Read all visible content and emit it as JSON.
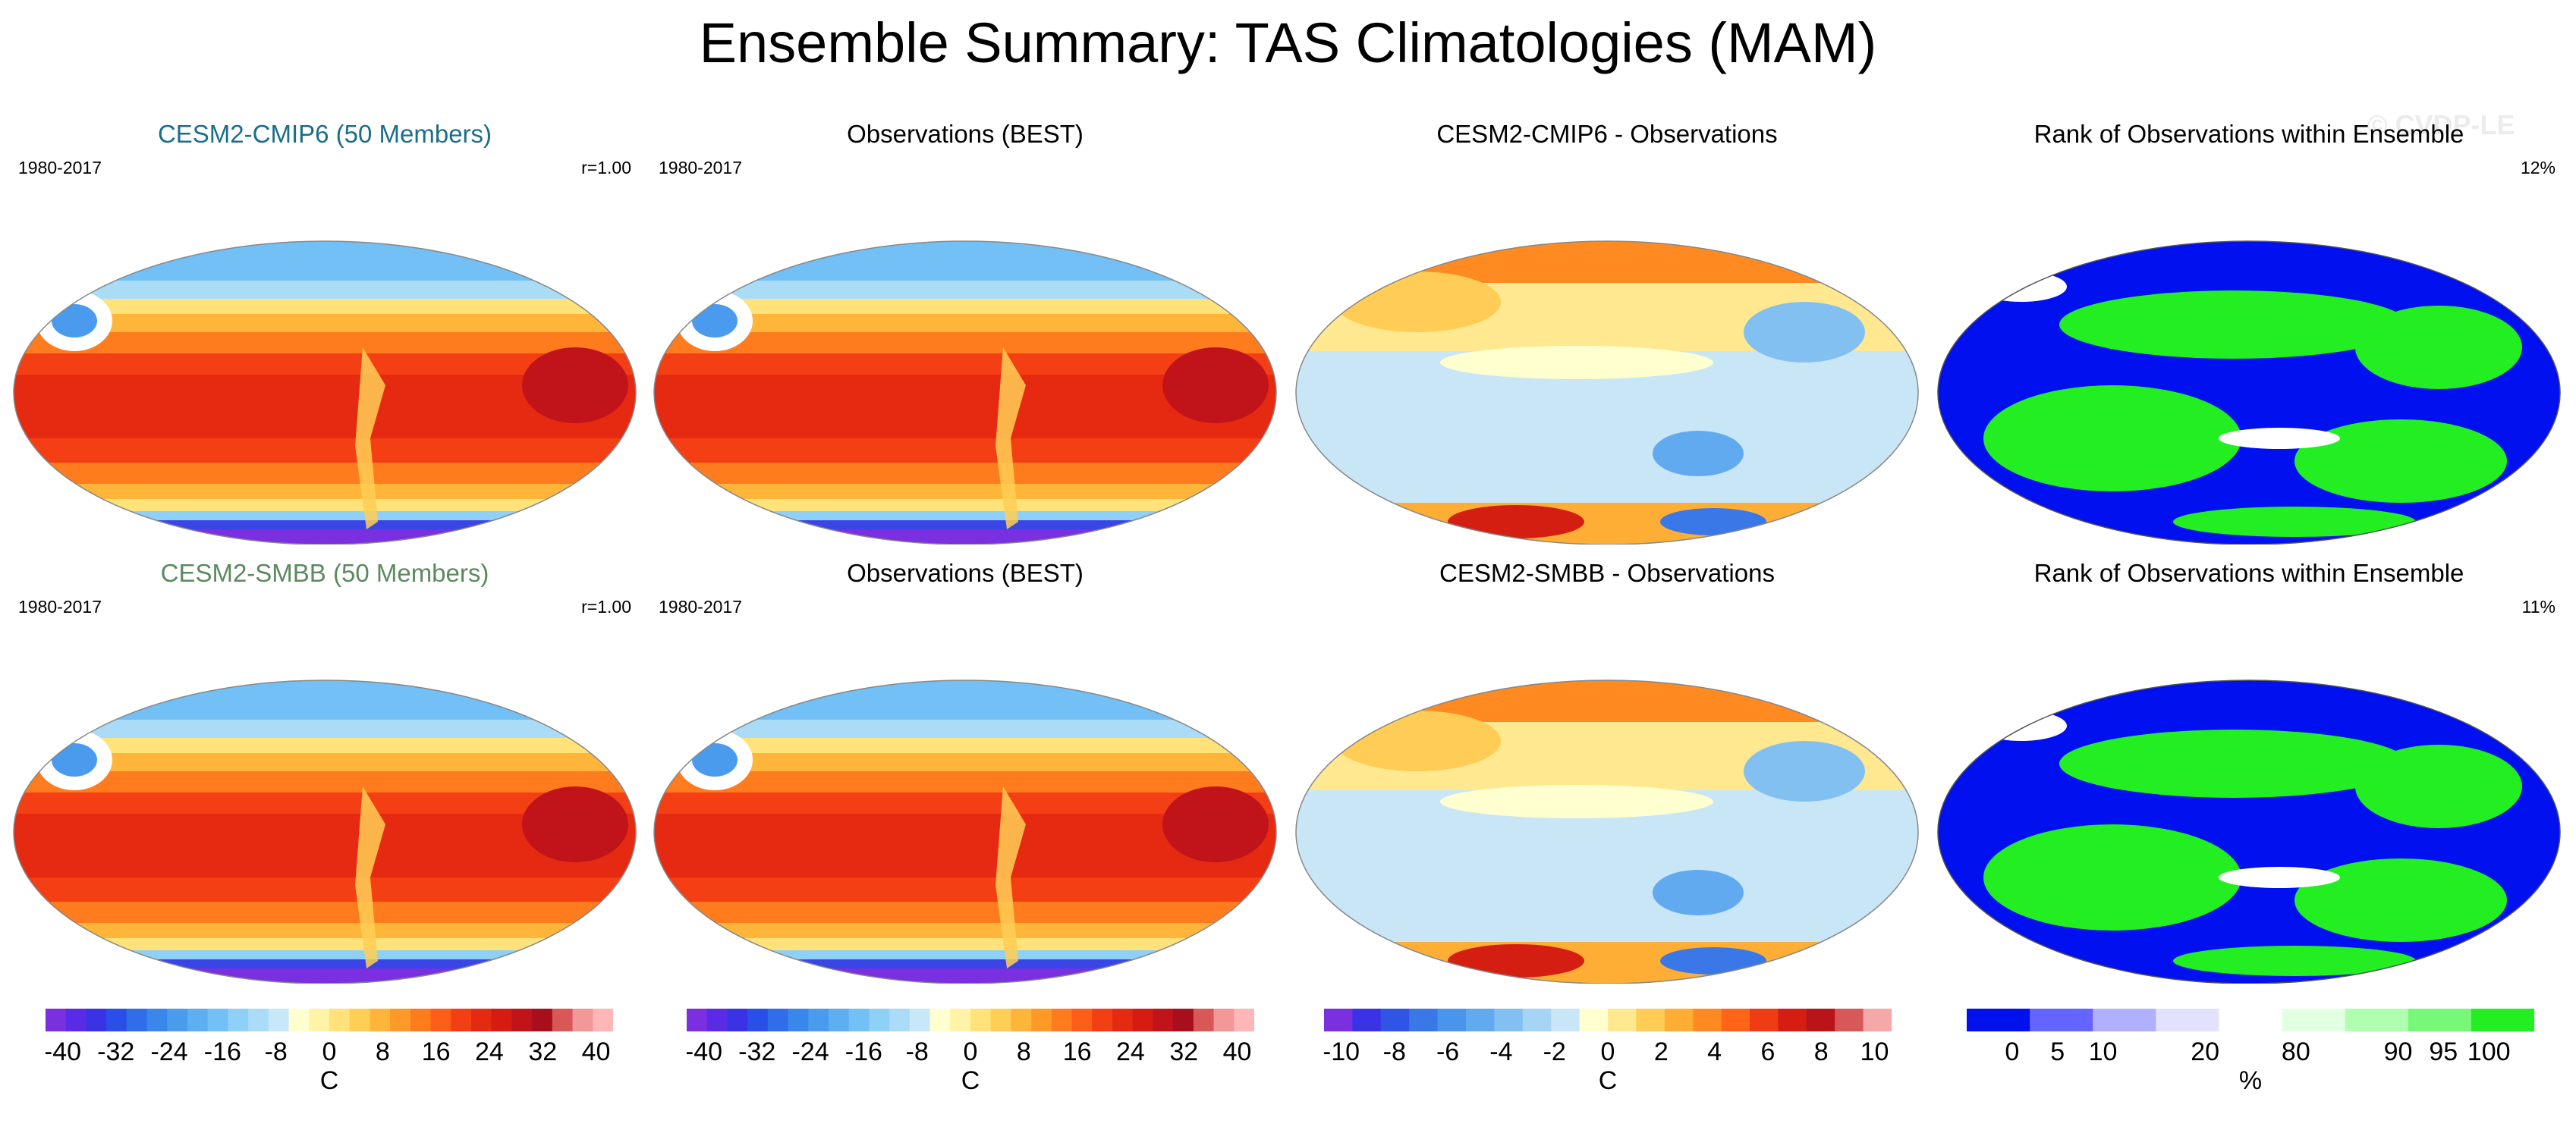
{
  "title": "Ensemble Summary: TAS Climatologies (MAM)",
  "watermark": "© CVDP-LE",
  "panels": [
    [
      {
        "title": "CESM2-CMIP6 (50 Members)",
        "title_color": "#1a6e8a",
        "left": "1980-2017",
        "right": "r=1.00",
        "kind": "clim"
      },
      {
        "title": "Observations (BEST)",
        "title_color": "#000000",
        "left": "1980-2017",
        "right": "",
        "kind": "clim"
      },
      {
        "title": "CESM2-CMIP6 - Observations",
        "title_color": "#000000",
        "left": "",
        "right": "",
        "kind": "diff"
      },
      {
        "title": "Rank of Observations within Ensemble",
        "title_color": "#000000",
        "left": "",
        "right": "12%",
        "kind": "rank"
      }
    ],
    [
      {
        "title": "CESM2-SMBB (50 Members)",
        "title_color": "#5b8a5e",
        "left": "1980-2017",
        "right": "r=1.00",
        "kind": "clim"
      },
      {
        "title": "Observations (BEST)",
        "title_color": "#000000",
        "left": "1980-2017",
        "right": "",
        "kind": "clim"
      },
      {
        "title": "CESM2-SMBB - Observations",
        "title_color": "#000000",
        "left": "",
        "right": "",
        "kind": "diff"
      },
      {
        "title": "Rank of Observations within Ensemble",
        "title_color": "#000000",
        "left": "",
        "right": "11%",
        "kind": "rank"
      }
    ]
  ],
  "colorbars": [
    {
      "unit": "C",
      "labels": [
        "-40",
        "-32",
        "-24",
        "-16",
        "-8",
        "0",
        "8",
        "16",
        "24",
        "32",
        "40"
      ],
      "colors": [
        "#7a2fe0",
        "#5a2be6",
        "#3a32e6",
        "#2a4fe8",
        "#2f6ee8",
        "#3a86ea",
        "#4a9bee",
        "#5eaef2",
        "#72c0f5",
        "#8fd0f7",
        "#aadcf7",
        "#c8e8f7",
        "#ffffd0",
        "#fff3a8",
        "#ffe27a",
        "#ffce55",
        "#ffb43a",
        "#ff9a28",
        "#ff7c1e",
        "#ff5e18",
        "#f43e14",
        "#e62a12",
        "#d61c12",
        "#c0141a",
        "#a80f1c",
        "#d85858",
        "#f29898",
        "#ffb6b6"
      ]
    },
    {
      "unit": "C",
      "labels": [
        "-40",
        "-32",
        "-24",
        "-16",
        "-8",
        "0",
        "8",
        "16",
        "24",
        "32",
        "40"
      ],
      "colors": [
        "#7a2fe0",
        "#5a2be6",
        "#3a32e6",
        "#2a4fe8",
        "#2f6ee8",
        "#3a86ea",
        "#4a9bee",
        "#5eaef2",
        "#72c0f5",
        "#8fd0f7",
        "#aadcf7",
        "#c8e8f7",
        "#ffffd0",
        "#fff3a8",
        "#ffe27a",
        "#ffce55",
        "#ffb43a",
        "#ff9a28",
        "#ff7c1e",
        "#ff5e18",
        "#f43e14",
        "#e62a12",
        "#d61c12",
        "#c0141a",
        "#a80f1c",
        "#d85858",
        "#f29898",
        "#ffb6b6"
      ]
    },
    {
      "unit": "C",
      "labels": [
        "-10",
        "-8",
        "-6",
        "-4",
        "-2",
        "0",
        "2",
        "4",
        "6",
        "8",
        "10"
      ],
      "colors": [
        "#7a2fe0",
        "#3a32e6",
        "#2f55e6",
        "#3a78e8",
        "#4a94ec",
        "#62aaf0",
        "#82c0f2",
        "#a6d4f4",
        "#c8e6f6",
        "#ffffd0",
        "#ffe890",
        "#ffcc55",
        "#ffae35",
        "#ff8a22",
        "#ff6418",
        "#f03c14",
        "#d41e12",
        "#b8141a",
        "#d85858",
        "#f6a8a8"
      ]
    },
    {
      "unit": "%",
      "labels": [
        "0",
        "5",
        "10",
        "20",
        "80",
        "90",
        "95",
        "100"
      ],
      "colors": [
        "#0010ee",
        "#6464ff",
        "#b0b0ff",
        "#e2e2ff",
        "#ffffff",
        "#e2ffe2",
        "#b0ffb0",
        "#78f878",
        "#22ee22"
      ]
    }
  ]
}
